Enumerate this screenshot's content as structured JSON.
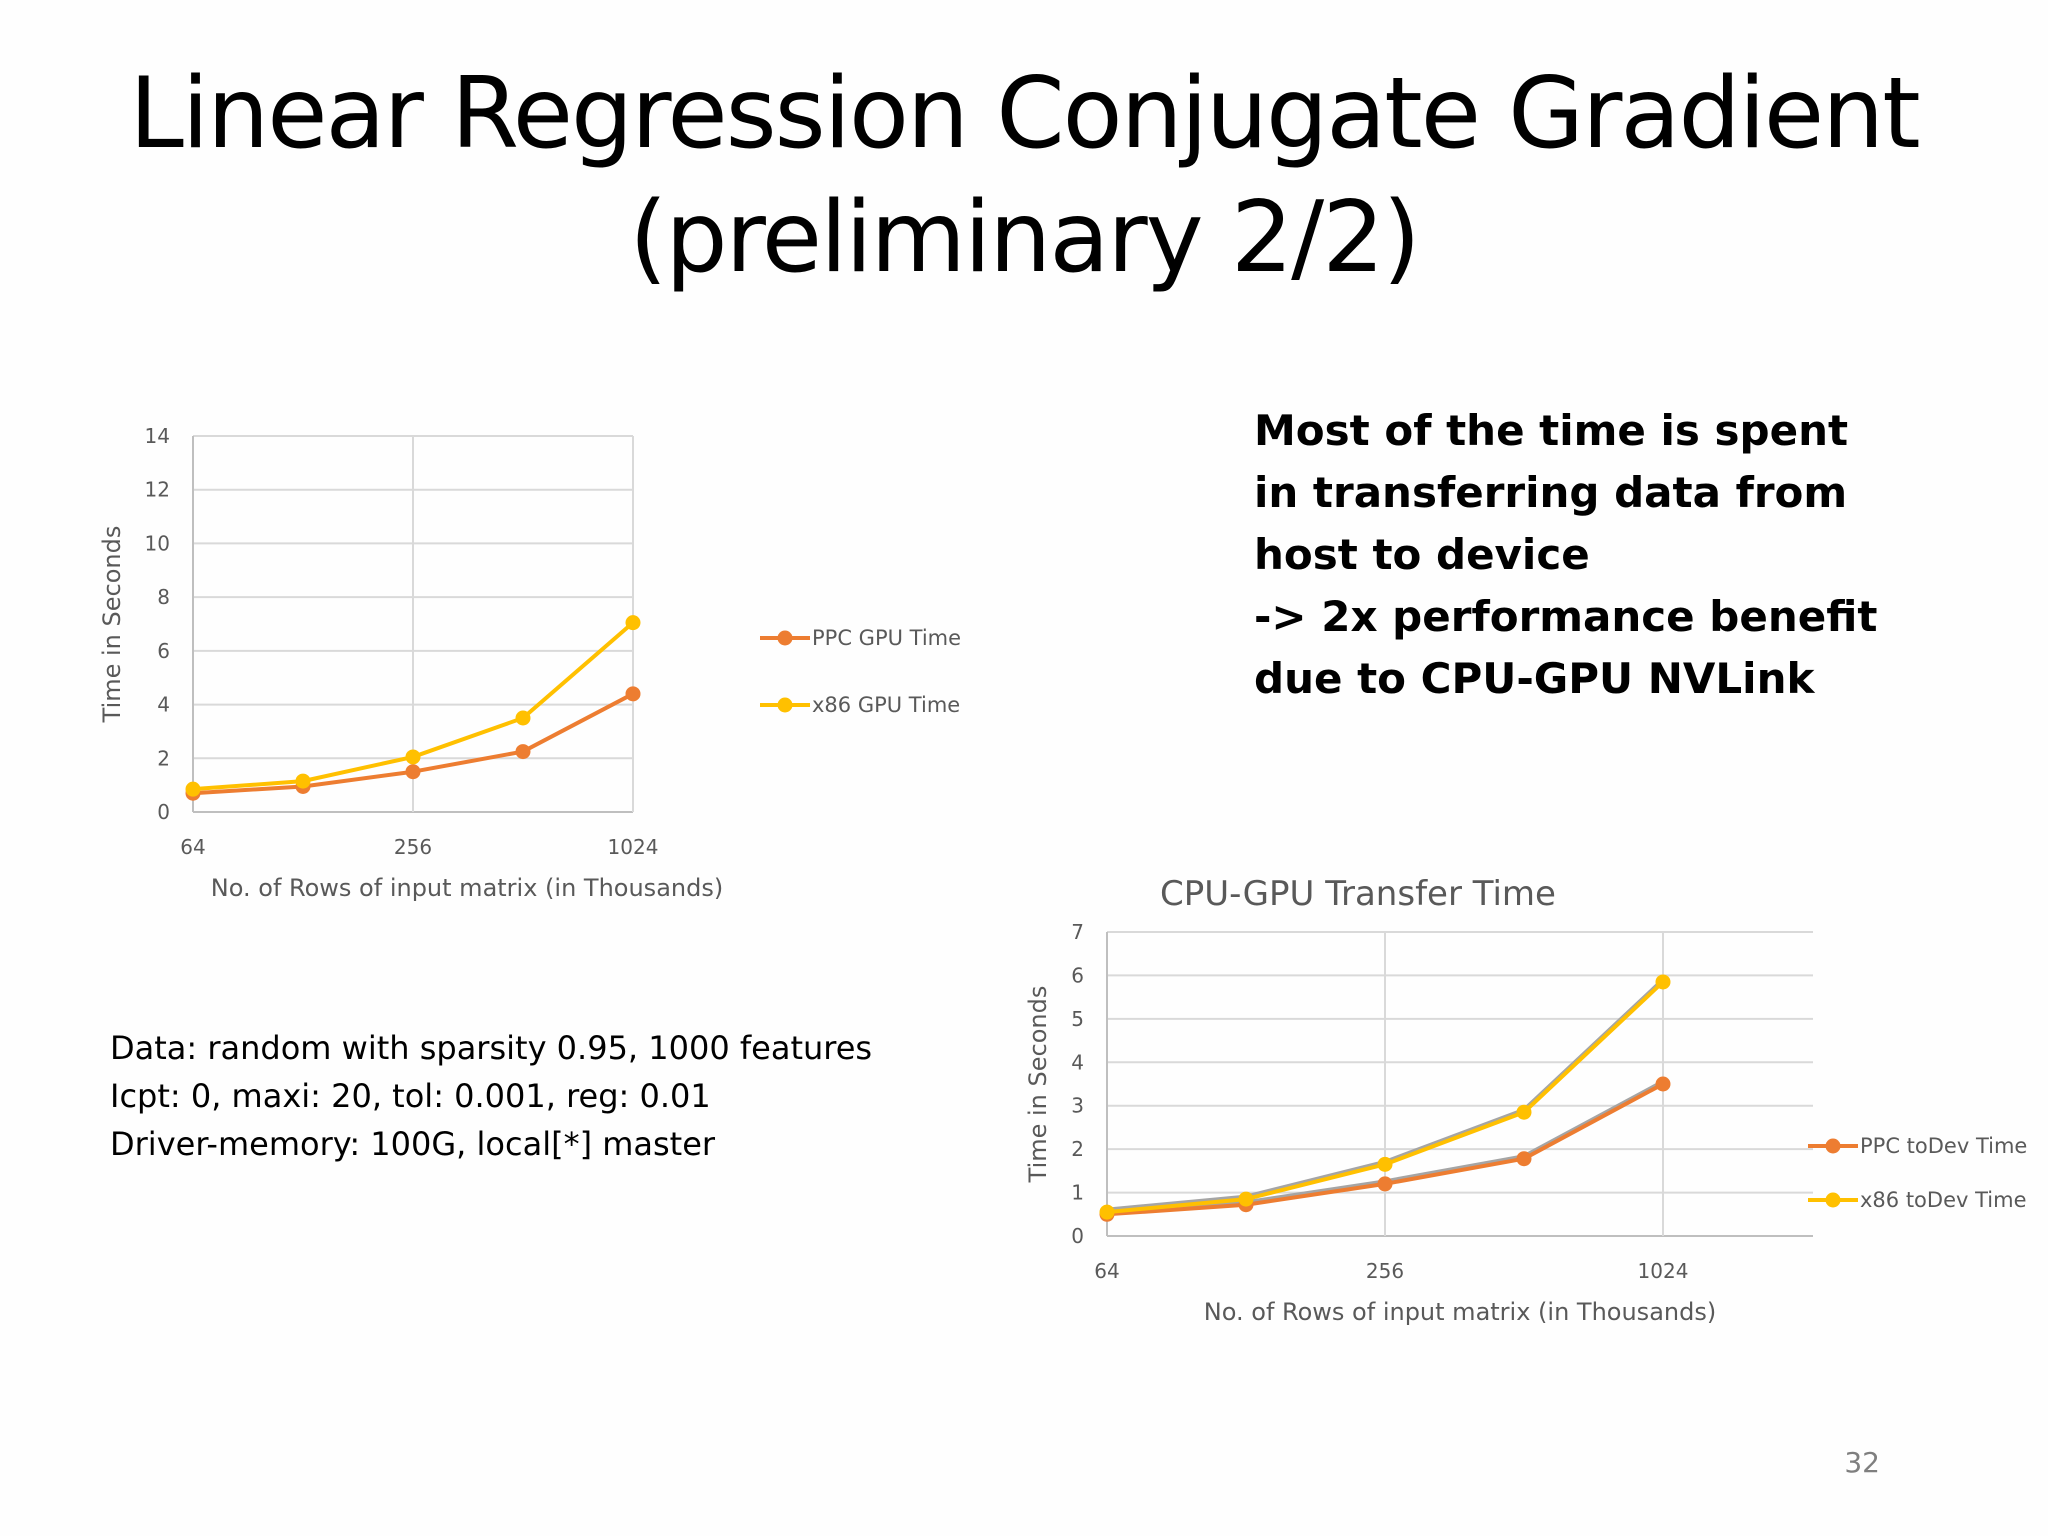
{
  "slide": {
    "title_lines": [
      "Linear Regression Conjugate Gradient",
      "(preliminary 2/2)"
    ],
    "note_lines": [
      "Most of the time is spent",
      "in transferring data from",
      "host to device",
      "-> 2x performance benefit",
      "due to CPU-GPU NVLink"
    ],
    "config_lines": [
      "Data: random with sparsity 0.95, 1000 features",
      "Icpt: 0, maxi: 20, tol: 0.001, reg: 0.01",
      "Driver-memory: 100G, local[*] master"
    ],
    "page_number": "32"
  },
  "chart_data": [
    {
      "type": "line",
      "title": "",
      "xlabel": "No. of Rows of input matrix (in Thousands)",
      "ylabel": "Time in Seconds",
      "x": [
        64,
        128,
        256,
        512,
        1024
      ],
      "x_scale": "log2",
      "x_ticks": [
        "64",
        "256",
        "1024"
      ],
      "ylim": [
        0,
        14
      ],
      "y_ticks": [
        "0",
        "2",
        "4",
        "6",
        "8",
        "10",
        "12",
        "14"
      ],
      "grid": true,
      "legend_position": "right",
      "series": [
        {
          "name": "PPC GPU Time",
          "color": "#ED7D31",
          "values": [
            0.7,
            0.95,
            1.5,
            2.25,
            4.4
          ]
        },
        {
          "name": "x86 GPU Time",
          "color": "#FFC000",
          "values": [
            0.85,
            1.15,
            2.05,
            3.5,
            7.05
          ]
        }
      ]
    },
    {
      "type": "line",
      "title": "CPU-GPU Transfer Time",
      "xlabel": "No. of Rows of input matrix (in Thousands)",
      "ylabel": "Time in Seconds",
      "x": [
        64,
        128,
        256,
        512,
        1024
      ],
      "x_scale": "log2",
      "x_ticks": [
        "64",
        "256",
        "1024"
      ],
      "ylim": [
        0,
        7
      ],
      "y_ticks": [
        "0",
        "1",
        "2",
        "3",
        "4",
        "5",
        "6",
        "7"
      ],
      "grid": true,
      "legend_position": "right",
      "series": [
        {
          "name": "PPC toDev Time",
          "color": "#ED7D31",
          "values": [
            0.5,
            0.72,
            1.2,
            1.78,
            3.5
          ]
        },
        {
          "name": "x86 toDev Time",
          "color": "#FFC000",
          "values": [
            0.55,
            0.85,
            1.65,
            2.85,
            5.85
          ]
        }
      ]
    }
  ]
}
